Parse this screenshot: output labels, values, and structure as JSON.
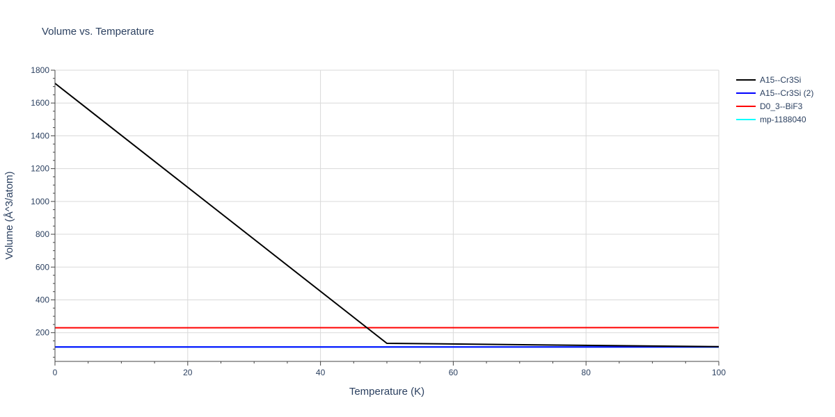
{
  "chart_data": {
    "type": "line",
    "title": "Volume vs. Temperature",
    "xlabel": "Temperature (K)",
    "ylabel": "Volume (Å^3/atom)",
    "xlim": [
      0,
      100
    ],
    "ylim": [
      25,
      1800
    ],
    "x_ticks": [
      0,
      20,
      40,
      60,
      80,
      100
    ],
    "y_ticks": [
      200,
      400,
      600,
      800,
      1000,
      1200,
      1400,
      1600,
      1800
    ],
    "grid": true,
    "legend_position": "top-right",
    "series": [
      {
        "name": "mp-1188040",
        "color": "#00ffff",
        "x": [
          0,
          100
        ],
        "y": [
          113,
          113
        ]
      },
      {
        "name": "A15--Cr3Si (2)",
        "color": "#0000ff",
        "x": [
          0,
          100
        ],
        "y": [
          113,
          113
        ]
      },
      {
        "name": "D0_3--BiF3",
        "color": "#ff0000",
        "x": [
          0,
          100
        ],
        "y": [
          230,
          231
        ]
      },
      {
        "name": "A15--Cr3Si",
        "color": "#000000",
        "x": [
          0,
          50,
          100
        ],
        "y": [
          1720,
          135,
          115
        ]
      }
    ],
    "legend_order": [
      "A15--Cr3Si",
      "A15--Cr3Si (2)",
      "D0_3--BiF3",
      "mp-1188040"
    ]
  }
}
